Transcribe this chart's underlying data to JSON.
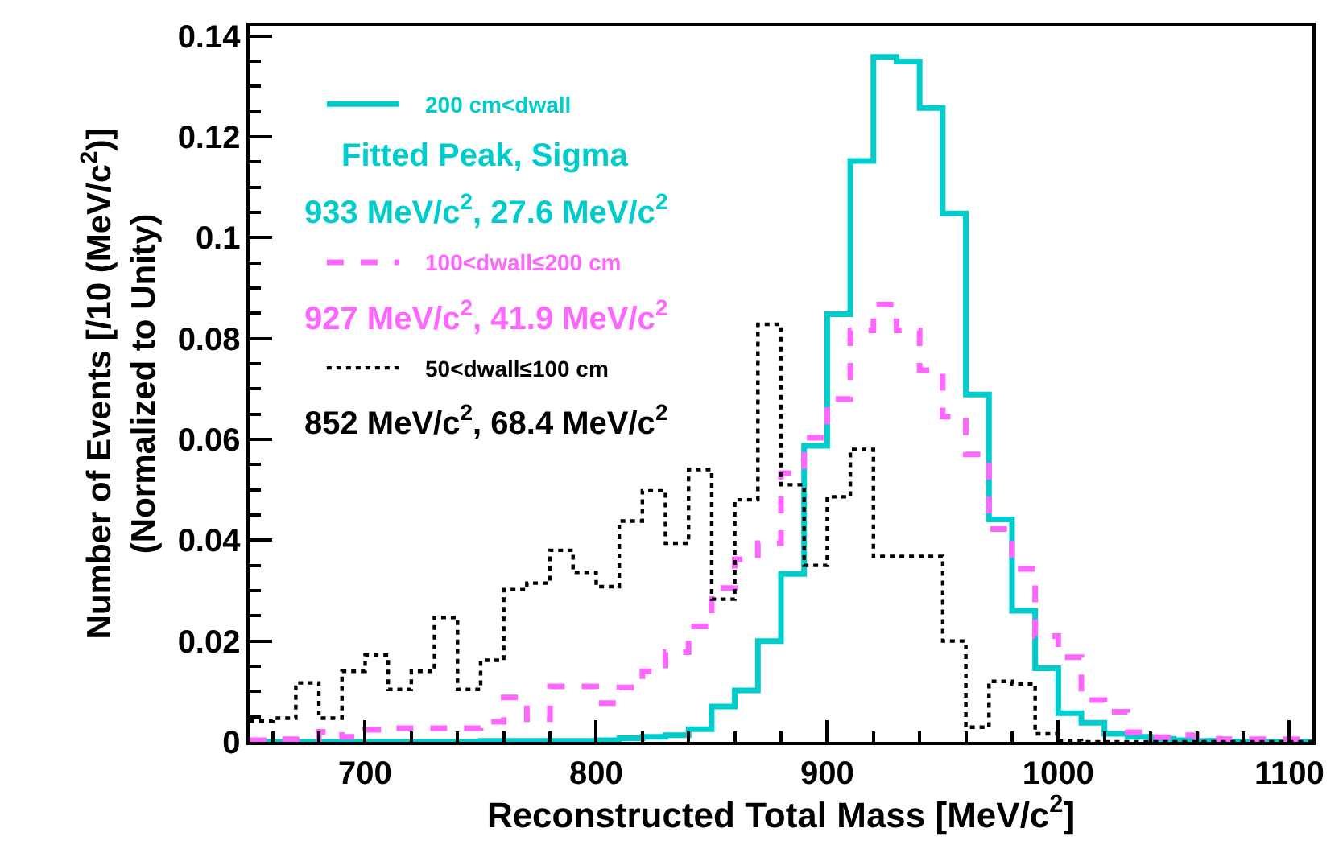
{
  "chart_data": {
    "type": "histogram",
    "xlabel": "Reconstructed Total Mass [MeV/c$^{2}$]",
    "ylabel": "Number of Events [/10 (MeV/c$^{2}$)]\n(Normalized to Unity)",
    "bins": [
      650,
      660,
      670,
      680,
      690,
      700,
      710,
      720,
      730,
      740,
      750,
      760,
      770,
      780,
      790,
      800,
      810,
      820,
      830,
      840,
      850,
      860,
      870,
      880,
      890,
      900,
      910,
      920,
      930,
      940,
      950,
      960,
      970,
      980,
      990,
      1000,
      1010,
      1020,
      1030,
      1040,
      1050,
      1060,
      1070,
      1080,
      1090,
      1100,
      1110
    ],
    "series": [
      {
        "name": "200 cm<dwall",
        "color": "#00cccc",
        "line_style": "solid",
        "values": [
          0,
          0,
          0,
          0,
          0,
          0,
          0,
          0,
          0,
          0,
          0.0002,
          0.0002,
          0.0002,
          0.0002,
          0.0002,
          0.0003,
          0.0007,
          0.001,
          0.0013,
          0.0025,
          0.007,
          0.0102,
          0.02,
          0.0333,
          0.0587,
          0.0848,
          0.1152,
          0.1358,
          0.1349,
          0.1257,
          0.1048,
          0.0689,
          0.0441,
          0.026,
          0.0146,
          0.0057,
          0.0038,
          0.0016,
          0.001,
          0.0006,
          0.0003,
          0.0002,
          0.0001,
          0,
          0,
          0
        ]
      },
      {
        "name": "100<dwall≤200 cm",
        "color": "#ff66ff",
        "line_style": "dashed",
        "values": [
          0.0003,
          0.0005,
          0.0005,
          0.002,
          0.001,
          0.0024,
          0.0027,
          0.0027,
          0.0027,
          0.0027,
          0.004,
          0.0088,
          0.0045,
          0.011,
          0.011,
          0.0077,
          0.0108,
          0.014,
          0.0178,
          0.0229,
          0.0305,
          0.0362,
          0.0394,
          0.0533,
          0.0603,
          0.068,
          0.0816,
          0.0867,
          0.0816,
          0.0737,
          0.0645,
          0.057,
          0.0422,
          0.0343,
          0.021,
          0.0168,
          0.0083,
          0.006,
          0.0019,
          0.0009,
          0.0013,
          0.0006,
          0.0005,
          0.0005,
          0.0005,
          0.0005
        ]
      },
      {
        "name": "50<dwall≤100 cm",
        "color": "#000000",
        "line_style": "dotted",
        "values": [
          0.0041,
          0.0047,
          0.0117,
          0.0047,
          0.014,
          0.0172,
          0.0104,
          0.014,
          0.0247,
          0.0104,
          0.0162,
          0.0302,
          0.0315,
          0.038,
          0.0336,
          0.0308,
          0.0438,
          0.0498,
          0.0394,
          0.054,
          0.0283,
          0.048,
          0.0828,
          0.051,
          0.035,
          0.0486,
          0.058,
          0.0368,
          0.0368,
          0.0368,
          0.02,
          0.0029,
          0.012,
          0.0115,
          0.0016,
          0.0003,
          0,
          0,
          0,
          0,
          0,
          0,
          0,
          0,
          0,
          0
        ]
      }
    ],
    "annotations": [
      "Fitted Peak, Sigma",
      "933 MeV/c$^{2}$, 27.6 MeV/c$^{2}$",
      "927 MeV/c$^{2}$, 41.9 MeV/c$^{2}$",
      "852 MeV/c$^{2}$, 68.4 MeV/c$^{2}$"
    ],
    "xlim": [
      650,
      1110
    ],
    "xticks": [
      700,
      800,
      900,
      1000,
      1100
    ],
    "ylim": [
      0,
      0.142
    ],
    "yticks": [
      0,
      {
        "value": 0.02,
        "label": "0.02"
      },
      {
        "value": 0.04,
        "label": "0.04"
      },
      {
        "value": 0.06,
        "label": "0.06"
      },
      {
        "value": 0.08,
        "label": "0.08"
      },
      {
        "value": 0.1,
        "label": "0.1"
      },
      {
        "value": 0.12,
        "label": "0.12"
      },
      {
        "value": 0.14,
        "label": "0.14"
      }
    ],
    "legend": "top left"
  }
}
